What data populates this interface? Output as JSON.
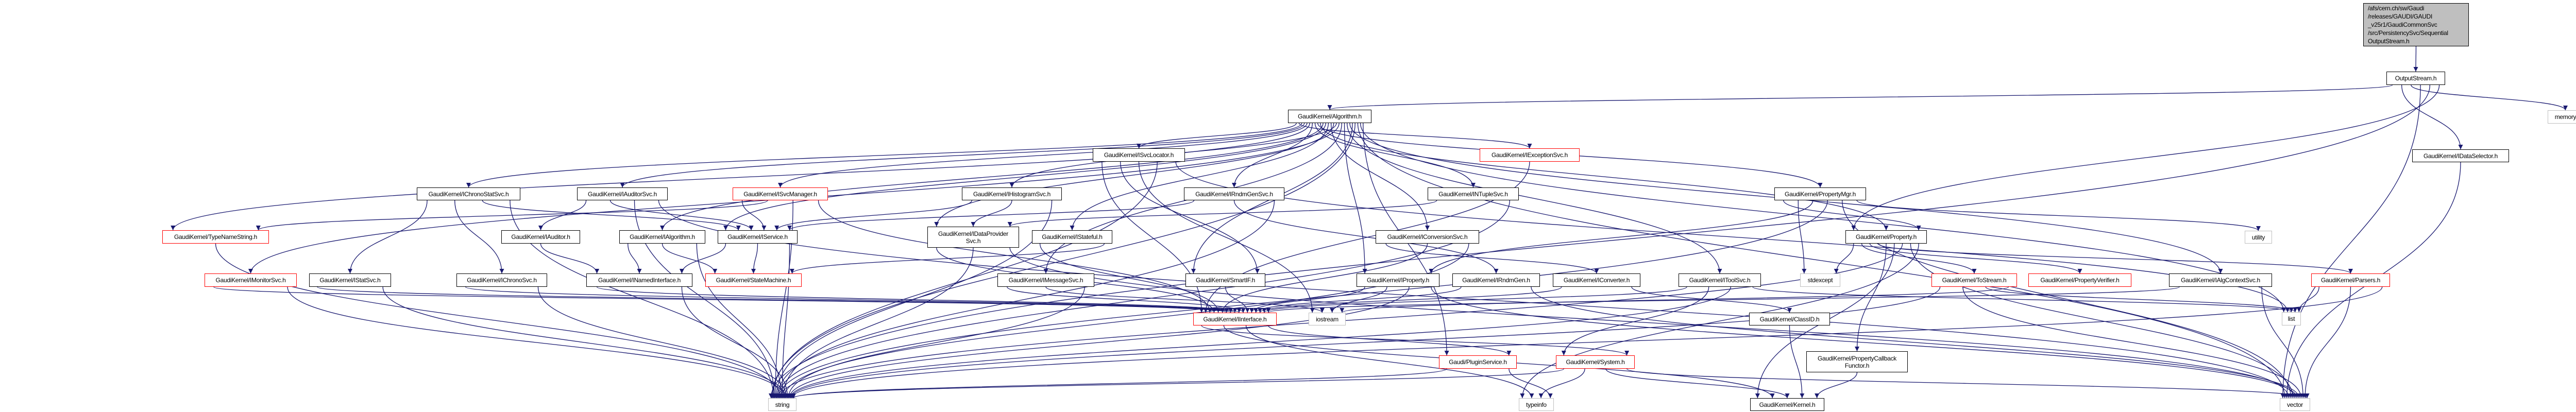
{
  "graph": {
    "edge_color": "#191970",
    "styles": {
      "root": "#bfbfbf",
      "truncated": "#ff0000",
      "external": "#bfbfbf",
      "normal": "#000000"
    },
    "nodes": [
      {
        "id": "root",
        "label": "/afs/cern.ch/sw/Gaudi\n/releases/GAUDI/GAUDI\n_v25r1/GaudiCommonSvc\n/src/PersistencySvc/Sequential\n           OutputStream.h",
        "style": "root"
      },
      {
        "id": "outputstream",
        "label": "OutputStream.h",
        "style": "normal"
      },
      {
        "id": "algorithm",
        "label": "GaudiKernel/Algorithm.h",
        "style": "normal"
      },
      {
        "id": "isvclocator",
        "label": "GaudiKernel/ISvcLocator.h",
        "style": "normal"
      },
      {
        "id": "iexceptionsvc",
        "label": "GaudiKernel/IExceptionSvc.h",
        "style": "truncated"
      },
      {
        "id": "idataselector",
        "label": "GaudiKernel/IDataSelector.h",
        "style": "normal"
      },
      {
        "id": "memory",
        "label": "memory",
        "style": "external"
      },
      {
        "id": "ichronostatsvc",
        "label": "GaudiKernel/IChronoStatSvc.h",
        "style": "normal"
      },
      {
        "id": "iauditorsvc",
        "label": "GaudiKernel/IAuditorSvc.h",
        "style": "normal"
      },
      {
        "id": "isvcmanager",
        "label": "GaudiKernel/ISvcManager.h",
        "style": "truncated"
      },
      {
        "id": "ihistogramsvc",
        "label": "GaudiKernel/IHistogramSvc.h",
        "style": "normal"
      },
      {
        "id": "irndmgensvc",
        "label": "GaudiKernel/IRndmGenSvc.h",
        "style": "normal"
      },
      {
        "id": "intuplesvc",
        "label": "GaudiKernel/INTupleSvc.h",
        "style": "normal"
      },
      {
        "id": "propertymgr",
        "label": "GaudiKernel/PropertyMgr.h",
        "style": "normal"
      },
      {
        "id": "typenamestring",
        "label": "GaudiKernel/TypeNameString.h",
        "style": "truncated"
      },
      {
        "id": "iauditor",
        "label": "GaudiKernel/IAuditor.h",
        "style": "normal"
      },
      {
        "id": "ialgorithm",
        "label": "GaudiKernel/IAlgorithm.h",
        "style": "normal"
      },
      {
        "id": "iservice",
        "label": "GaudiKernel/IService.h",
        "style": "normal"
      },
      {
        "id": "idataprovidersvc",
        "label": "GaudiKernel/IDataProvider\nSvc.h",
        "style": "normal"
      },
      {
        "id": "istateful",
        "label": "GaudiKernel/IStateful.h",
        "style": "normal"
      },
      {
        "id": "iconversionsvc",
        "label": "GaudiKernel/IConversionSvc.h",
        "style": "normal"
      },
      {
        "id": "property",
        "label": "GaudiKernel/Property.h",
        "style": "normal"
      },
      {
        "id": "utility",
        "label": "utility",
        "style": "external"
      },
      {
        "id": "imonitorsvc",
        "label": "GaudiKernel/IMonitorSvc.h",
        "style": "truncated"
      },
      {
        "id": "istatsvc",
        "label": "GaudiKernel/IStatSvc.h",
        "style": "normal"
      },
      {
        "id": "ichronosvc",
        "label": "GaudiKernel/IChronoSvc.h",
        "style": "normal"
      },
      {
        "id": "inamedinterface",
        "label": "GaudiKernel/INamedInterface.h",
        "style": "normal"
      },
      {
        "id": "statemachine",
        "label": "GaudiKernel/StateMachine.h",
        "style": "truncated"
      },
      {
        "id": "imessagesvc",
        "label": "GaudiKernel/IMessageSvc.h",
        "style": "normal"
      },
      {
        "id": "smartif",
        "label": "GaudiKernel/SmartIF.h",
        "style": "normal"
      },
      {
        "id": "iproperty",
        "label": "GaudiKernel/IProperty.h",
        "style": "normal"
      },
      {
        "id": "irndmgen",
        "label": "GaudiKernel/IRndmGen.h",
        "style": "normal"
      },
      {
        "id": "iconverter",
        "label": "GaudiKernel/IConverter.h",
        "style": "normal"
      },
      {
        "id": "itoolsvc",
        "label": "GaudiKernel/IToolSvc.h",
        "style": "normal"
      },
      {
        "id": "stdexcept",
        "label": "stdexcept",
        "style": "external"
      },
      {
        "id": "tostream",
        "label": "GaudiKernel/ToStream.h",
        "style": "truncated"
      },
      {
        "id": "propertyverifier",
        "label": "GaudiKernel/PropertyVerifier.h",
        "style": "truncated"
      },
      {
        "id": "ialgcontextsvc",
        "label": "GaudiKernel/IAlgContextSvc.h",
        "style": "normal"
      },
      {
        "id": "parsers",
        "label": "GaudiKernel/Parsers.h",
        "style": "truncated"
      },
      {
        "id": "interface",
        "label": "GaudiKernel/IInterface.h",
        "style": "truncated"
      },
      {
        "id": "iostream",
        "label": "iostream",
        "style": "external"
      },
      {
        "id": "classid",
        "label": "GaudiKernel/ClassID.h",
        "style": "normal"
      },
      {
        "id": "list",
        "label": "list",
        "style": "external"
      },
      {
        "id": "pluginservice",
        "label": "Gaudi/PluginService.h",
        "style": "truncated"
      },
      {
        "id": "system",
        "label": "GaudiKernel/System.h",
        "style": "truncated"
      },
      {
        "id": "propertycallbackfunctor",
        "label": "GaudiKernel/PropertyCallback\nFunctor.h",
        "style": "normal"
      },
      {
        "id": "string",
        "label": "string",
        "style": "external"
      },
      {
        "id": "typeinfo",
        "label": "typeinfo",
        "style": "external"
      },
      {
        "id": "kernel",
        "label": "GaudiKernel/Kernel.h",
        "style": "normal"
      },
      {
        "id": "vector",
        "label": "vector",
        "style": "external"
      }
    ],
    "edges": [
      [
        "root",
        "outputstream"
      ],
      [
        "outputstream",
        "algorithm"
      ],
      [
        "outputstream",
        "idataselector"
      ],
      [
        "outputstream",
        "memory"
      ],
      [
        "outputstream",
        "vector"
      ],
      [
        "outputstream",
        "string"
      ],
      [
        "outputstream",
        "property"
      ],
      [
        "algorithm",
        "isvclocator"
      ],
      [
        "algorithm",
        "iexceptionsvc"
      ],
      [
        "algorithm",
        "ichronostatsvc"
      ],
      [
        "algorithm",
        "iauditorsvc"
      ],
      [
        "algorithm",
        "isvcmanager"
      ],
      [
        "algorithm",
        "ihistogramsvc"
      ],
      [
        "algorithm",
        "irndmgensvc"
      ],
      [
        "algorithm",
        "intuplesvc"
      ],
      [
        "algorithm",
        "propertymgr"
      ],
      [
        "algorithm",
        "property"
      ],
      [
        "algorithm",
        "ialgorithm"
      ],
      [
        "algorithm",
        "iservice"
      ],
      [
        "algorithm",
        "istateful"
      ],
      [
        "algorithm",
        "iconversionsvc"
      ],
      [
        "algorithm",
        "idataprovidersvc"
      ],
      [
        "algorithm",
        "typenamestring"
      ],
      [
        "algorithm",
        "imonitorsvc"
      ],
      [
        "algorithm",
        "imessagesvc"
      ],
      [
        "algorithm",
        "iproperty"
      ],
      [
        "algorithm",
        "itoolsvc"
      ],
      [
        "algorithm",
        "ialgcontextsvc"
      ],
      [
        "algorithm",
        "smartif"
      ],
      [
        "algorithm",
        "string"
      ],
      [
        "algorithm",
        "vector"
      ],
      [
        "algorithm",
        "list"
      ],
      [
        "algorithm",
        "pluginservice"
      ],
      [
        "isvclocator",
        "interface"
      ],
      [
        "isvclocator",
        "smartif"
      ],
      [
        "isvclocator",
        "iostream"
      ],
      [
        "isvclocator",
        "string"
      ],
      [
        "isvclocator",
        "list"
      ],
      [
        "iexceptionsvc",
        "interface"
      ],
      [
        "idataselector",
        "vector"
      ],
      [
        "ichronostatsvc",
        "istatsvc"
      ],
      [
        "ichronostatsvc",
        "ichronosvc"
      ],
      [
        "ichronostatsvc",
        "iservice"
      ],
      [
        "ichronostatsvc",
        "string"
      ],
      [
        "iauditorsvc",
        "iauditor"
      ],
      [
        "iauditorsvc",
        "iservice"
      ],
      [
        "iauditorsvc",
        "string"
      ],
      [
        "iauditorsvc",
        "vector"
      ],
      [
        "isvcmanager",
        "iservice"
      ],
      [
        "isvcmanager",
        "typenamestring"
      ],
      [
        "isvcmanager",
        "string"
      ],
      [
        "isvcmanager",
        "interface"
      ],
      [
        "ihistogramsvc",
        "iservice"
      ],
      [
        "ihistogramsvc",
        "idataprovidersvc"
      ],
      [
        "ihistogramsvc",
        "string"
      ],
      [
        "irndmgensvc",
        "iservice"
      ],
      [
        "irndmgensvc",
        "irndmgen"
      ],
      [
        "irndmgensvc",
        "string"
      ],
      [
        "intuplesvc",
        "idataprovidersvc"
      ],
      [
        "intuplesvc",
        "string"
      ],
      [
        "propertymgr",
        "property"
      ],
      [
        "propertymgr",
        "stdexcept"
      ],
      [
        "propertymgr",
        "iproperty"
      ],
      [
        "propertymgr",
        "string"
      ],
      [
        "propertymgr",
        "vector"
      ],
      [
        "propertymgr",
        "utility"
      ],
      [
        "property",
        "stdexcept"
      ],
      [
        "property",
        "tostream"
      ],
      [
        "property",
        "propertyverifier"
      ],
      [
        "property",
        "parsers"
      ],
      [
        "property",
        "propertycallbackfunctor"
      ],
      [
        "property",
        "kernel"
      ],
      [
        "property",
        "string"
      ],
      [
        "property",
        "vector"
      ],
      [
        "property",
        "typeinfo"
      ],
      [
        "typenamestring",
        "string"
      ],
      [
        "iauditor",
        "inamedinterface"
      ],
      [
        "ialgorithm",
        "inamedinterface"
      ],
      [
        "ialgorithm",
        "statemachine"
      ],
      [
        "ialgorithm",
        "string"
      ],
      [
        "iservice",
        "inamedinterface"
      ],
      [
        "iservice",
        "statemachine"
      ],
      [
        "iservice",
        "string"
      ],
      [
        "idataprovidersvc",
        "interface"
      ],
      [
        "idataprovidersvc",
        "string"
      ],
      [
        "idataprovidersvc",
        "vector"
      ],
      [
        "istateful",
        "interface"
      ],
      [
        "istateful",
        "statemachine"
      ],
      [
        "iconversionsvc",
        "iconverter"
      ],
      [
        "iconversionsvc",
        "interface"
      ],
      [
        "iconversionsvc",
        "string"
      ],
      [
        "imonitorsvc",
        "interface"
      ],
      [
        "imonitorsvc",
        "string"
      ],
      [
        "istatsvc",
        "interface"
      ],
      [
        "istatsvc",
        "string"
      ],
      [
        "ichronosvc",
        "interface"
      ],
      [
        "ichronosvc",
        "string"
      ],
      [
        "inamedinterface",
        "interface"
      ],
      [
        "inamedinterface",
        "string"
      ],
      [
        "imessagesvc",
        "interface"
      ],
      [
        "imessagesvc",
        "iostream"
      ],
      [
        "imessagesvc",
        "string"
      ],
      [
        "smartif",
        "interface"
      ],
      [
        "iproperty",
        "interface"
      ],
      [
        "iproperty",
        "iostream"
      ],
      [
        "iproperty",
        "string"
      ],
      [
        "iproperty",
        "vector"
      ],
      [
        "irndmgen",
        "interface"
      ],
      [
        "irndmgen",
        "vector"
      ],
      [
        "iconverter",
        "interface"
      ],
      [
        "iconverter",
        "classid"
      ],
      [
        "itoolsvc",
        "interface"
      ],
      [
        "itoolsvc",
        "system"
      ],
      [
        "itoolsvc",
        "string"
      ],
      [
        "itoolsvc",
        "list"
      ],
      [
        "tostream",
        "string"
      ],
      [
        "tostream",
        "vector"
      ],
      [
        "tostream",
        "list"
      ],
      [
        "tostream",
        "iostream"
      ],
      [
        "ialgcontextsvc",
        "interface"
      ],
      [
        "ialgcontextsvc",
        "vector"
      ],
      [
        "parsers",
        "list"
      ],
      [
        "parsers",
        "vector"
      ],
      [
        "parsers",
        "string"
      ],
      [
        "interface",
        "system"
      ],
      [
        "interface",
        "kernel"
      ],
      [
        "interface",
        "typeinfo"
      ],
      [
        "interface",
        "pluginservice"
      ],
      [
        "system",
        "string"
      ],
      [
        "system",
        "typeinfo"
      ],
      [
        "system",
        "kernel"
      ],
      [
        "system",
        "vector"
      ],
      [
        "pluginservice",
        "string"
      ],
      [
        "pluginservice",
        "typeinfo"
      ],
      [
        "classid",
        "kernel"
      ],
      [
        "propertycallbackfunctor",
        "kernel"
      ]
    ]
  }
}
